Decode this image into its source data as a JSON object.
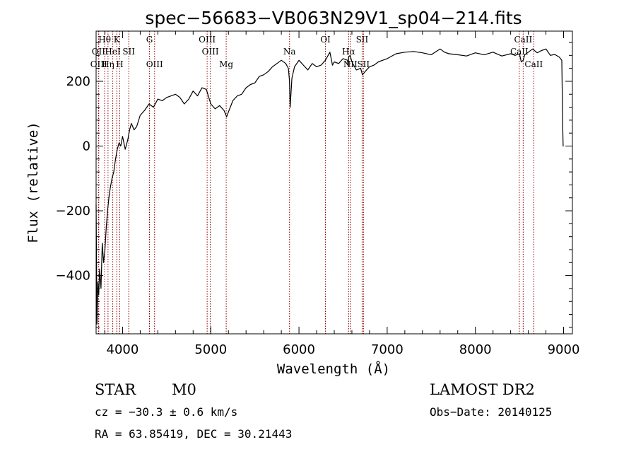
{
  "chart_data": {
    "type": "line",
    "title": "spec−56683−VB063N29V1_sp04−214.fits",
    "xlabel": "Wavelength (Å)",
    "ylabel": "Flux (relative)",
    "xlim": [
      3700,
      9100
    ],
    "ylim": [
      -580,
      355
    ],
    "x_ticks": [
      4000,
      5000,
      6000,
      7000,
      8000,
      9000
    ],
    "y_ticks": [
      -400,
      -200,
      0,
      200
    ],
    "grid": false,
    "series": [
      {
        "x": [
          3700,
          3710,
          3720,
          3730,
          3740,
          3755,
          3770,
          3785,
          3800,
          3815,
          3830,
          3845,
          3860,
          3880,
          3900,
          3920,
          3940,
          3960,
          3980,
          4000,
          4030,
          4060,
          4080,
          4100,
          4130,
          4160,
          4200,
          4250,
          4300,
          4350,
          4400,
          4450,
          4500,
          4550,
          4600,
          4650,
          4700,
          4750,
          4800,
          4850,
          4900,
          4950,
          5000,
          5050,
          5100,
          5150,
          5180,
          5200,
          5250,
          5300,
          5350,
          5400,
          5450,
          5500,
          5550,
          5600,
          5650,
          5700,
          5750,
          5800,
          5850,
          5880,
          5893,
          5900,
          5920,
          5950,
          6000,
          6050,
          6100,
          6150,
          6200,
          6250,
          6300,
          6350,
          6380,
          6400,
          6450,
          6500,
          6550,
          6560,
          6563,
          6580,
          6600,
          6650,
          6700,
          6720,
          6750,
          6800,
          6850,
          6900,
          6950,
          7000,
          7100,
          7200,
          7300,
          7400,
          7500,
          7600,
          7650,
          7700,
          7800,
          7900,
          8000,
          8100,
          8200,
          8300,
          8400,
          8450,
          8500,
          8520,
          8542,
          8560,
          8600,
          8650,
          8700,
          8750,
          8800,
          8850,
          8900,
          8950,
          8980,
          8990,
          8995,
          9000
        ],
        "y": [
          -180,
          -550,
          -420,
          -460,
          -380,
          -440,
          -300,
          -360,
          -320,
          -250,
          -200,
          -160,
          -130,
          -100,
          -80,
          -40,
          -10,
          10,
          0,
          30,
          -10,
          20,
          50,
          70,
          50,
          60,
          95,
          110,
          130,
          120,
          145,
          140,
          150,
          155,
          160,
          150,
          130,
          145,
          170,
          155,
          180,
          175,
          130,
          115,
          125,
          110,
          90,
          105,
          140,
          155,
          160,
          180,
          190,
          195,
          215,
          220,
          230,
          245,
          255,
          265,
          255,
          240,
          200,
          120,
          210,
          245,
          265,
          250,
          235,
          255,
          245,
          250,
          265,
          290,
          250,
          260,
          255,
          270,
          265,
          245,
          275,
          280,
          260,
          235,
          240,
          220,
          230,
          245,
          250,
          260,
          265,
          270,
          285,
          290,
          292,
          288,
          282,
          300,
          290,
          285,
          282,
          278,
          288,
          282,
          290,
          278,
          285,
          280,
          285,
          260,
          265,
          282,
          290,
          300,
          288,
          295,
          300,
          280,
          283,
          275,
          265,
          60,
          0,
          0
        ]
      }
    ],
    "line_markers": [
      {
        "label": "Hθ",
        "wavelength": 3797,
        "row": 1
      },
      {
        "label": "K",
        "wavelength": 3934,
        "row": 1
      },
      {
        "label": "G",
        "wavelength": 4305,
        "row": 1
      },
      {
        "label": "OIII",
        "wavelength": 4959,
        "row": 1
      },
      {
        "label": "OI",
        "wavelength": 6300,
        "row": 1
      },
      {
        "label": "SII",
        "wavelength": 6716,
        "row": 1
      },
      {
        "label": "CaII",
        "wavelength": 8542,
        "row": 1
      },
      {
        "label": "OII",
        "wavelength": 3727,
        "row": 2
      },
      {
        "label": "HeI",
        "wavelength": 3889,
        "row": 2
      },
      {
        "label": "SII",
        "wavelength": 4070,
        "row": 2
      },
      {
        "label": "OIII",
        "wavelength": 4995,
        "row": 2
      },
      {
        "label": "Na",
        "wavelength": 5893,
        "row": 2
      },
      {
        "label": "Hα",
        "wavelength": 6563,
        "row": 2
      },
      {
        "label": "CaII",
        "wavelength": 8498,
        "row": 2
      },
      {
        "label": "OIII",
        "wavelength": 3730,
        "row": 3
      },
      {
        "label": "Hη",
        "wavelength": 3835,
        "row": 3
      },
      {
        "label": "H",
        "wavelength": 3968,
        "row": 3
      },
      {
        "label": "OIII",
        "wavelength": 4363,
        "row": 3
      },
      {
        "label": "Mg",
        "wavelength": 5175,
        "row": 3
      },
      {
        "label": "NII",
        "wavelength": 6583,
        "row": 3
      },
      {
        "label": "SII",
        "wavelength": 6731,
        "row": 3
      },
      {
        "label": "CaII",
        "wavelength": 8662,
        "row": 3
      }
    ]
  },
  "info": {
    "class_label": "STAR",
    "subclass_label": "M0",
    "cz_text": "cz = −30.3 ± 0.6 km/s",
    "radec_text": "RA =  63.85419, DEC =  30.21443",
    "survey_label": "LAMOST DR2",
    "obsdate_text": "Obs−Date: 20140125"
  }
}
